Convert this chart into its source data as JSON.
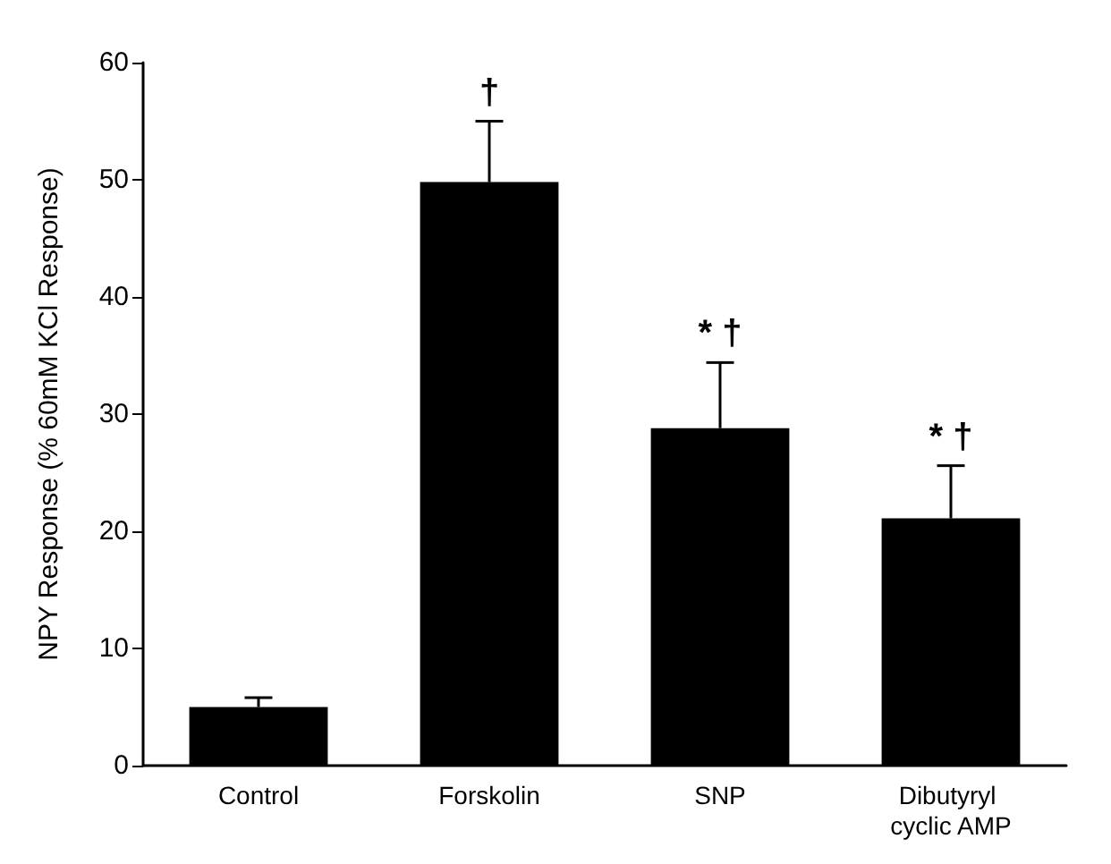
{
  "chart_data": {
    "type": "bar",
    "ylabel": "NPY Response (% 60mM KCl Response)",
    "categories": [
      "Control",
      "Forskolin",
      "SNP",
      "Dibutyryl cyclic AMP"
    ],
    "values": [
      5,
      49.8,
      28.8,
      21.1
    ],
    "errors": [
      [
        5,
        5.8
      ],
      [
        49.8,
        55
      ],
      [
        28.8,
        34.4
      ],
      [
        21.1,
        25.6
      ]
    ],
    "color": "#000000",
    "ylim": [
      0,
      60
    ],
    "yticks": [
      0,
      10,
      20,
      30,
      40,
      50,
      60
    ],
    "grid": false,
    "annotations": [
      {
        "text": "†",
        "x": "Forskolin",
        "y": 55
      },
      {
        "text": "* †",
        "x": "SNP",
        "y": 34.4
      },
      {
        "text": "* †",
        "x": "Dibutyryl cyclic AMP",
        "y": 25.6
      }
    ]
  }
}
